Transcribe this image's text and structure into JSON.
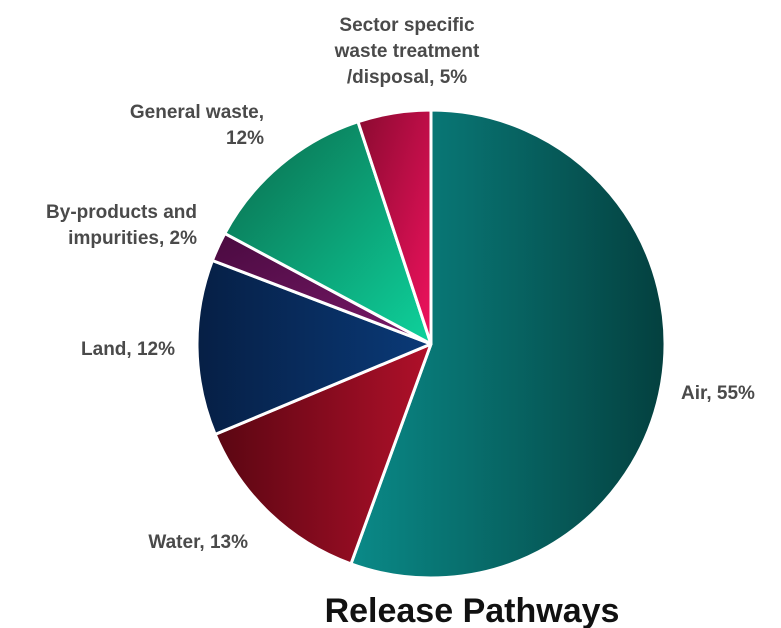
{
  "chart_data": {
    "type": "pie",
    "title": "Release Pathways",
    "start_angle_deg": 0,
    "direction": "clockwise",
    "slices": [
      {
        "key": "air",
        "label_lines": [
          "Air,  55%"
        ],
        "value": 55,
        "color_light": "#0a8a88",
        "color_dark": "#04403f"
      },
      {
        "key": "water",
        "label_lines": [
          "Water, 13%"
        ],
        "value": 13,
        "color_light": "#b0102a",
        "color_dark": "#5a0612"
      },
      {
        "key": "land",
        "label_lines": [
          "Land, 12%"
        ],
        "value": 12,
        "color_light": "#0a3a78",
        "color_dark": "#061f45"
      },
      {
        "key": "byproducts",
        "label_lines": [
          "By-products and",
          "impurities, 2%"
        ],
        "value": 2,
        "color_light": "#7a1a6a",
        "color_dark": "#4a0a40"
      },
      {
        "key": "general-waste",
        "label_lines": [
          "General waste,",
          "12%"
        ],
        "value": 12,
        "color_light": "#0ed29c",
        "color_dark": "#0a6a4c"
      },
      {
        "key": "sector-waste",
        "label_lines": [
          "Sector specific",
          "waste treatment",
          "/disposal, 5%"
        ],
        "value": 5,
        "color_light": "#f0125e",
        "color_dark": "#8a0a30"
      }
    ]
  }
}
